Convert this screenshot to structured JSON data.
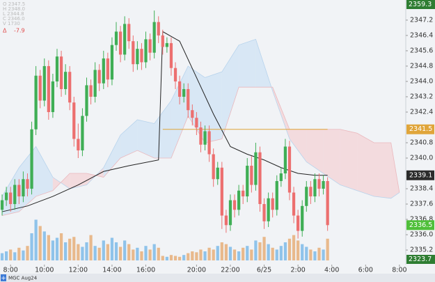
{
  "chart_data": {
    "type": "candlestick",
    "symbol_tab": "MGC Aug24",
    "ohlc_readout": [
      "O 2347.5",
      "H 2348.0",
      "L 2344.8",
      "C 2346.0",
      "V 1730"
    ],
    "change": {
      "symbol": "Δ",
      "value": -7.9
    },
    "xlim": [
      -0.5,
      95.5
    ],
    "ylim": [
      2334.44,
      2348.25
    ],
    "xticks": [
      {
        "value": 2,
        "label": "8:00"
      },
      {
        "value": 10,
        "label": "10:00"
      },
      {
        "value": 18,
        "label": "12:00"
      },
      {
        "value": 26,
        "label": "14:00"
      },
      {
        "value": 34,
        "label": "16:00"
      },
      {
        "value": 46,
        "label": "20:00"
      },
      {
        "value": 54,
        "label": "22:00"
      },
      {
        "value": 62,
        "label": "6/25"
      },
      {
        "value": 70,
        "label": "2:00"
      },
      {
        "value": 78,
        "label": "4:00"
      },
      {
        "value": 86,
        "label": "6:00"
      },
      {
        "value": 94,
        "label": "8:00"
      }
    ],
    "yticks": [
      2335.2,
      {
        "value": 2336,
        "label": "2336.0"
      },
      2336.8,
      2337.6,
      2338.4,
      {
        "value": 2340,
        "label": "2340.0"
      },
      2340.8,
      2342.4,
      2343.2,
      {
        "value": 2344,
        "label": "2344.0"
      },
      2344.8,
      2345.6,
      2346.4,
      2347.2
    ],
    "grid": false,
    "up_color": "#3fae55",
    "down_color": "#ec6f6f",
    "open": [
      2337.3,
      2337.8,
      2338.2,
      2337.6,
      2338.6,
      2338.0,
      2338.9,
      2338.4,
      2341.5,
      2344.3,
      2343.0,
      2344.8,
      2342.4,
      2344.0,
      2345.3,
      2343.6,
      2344.5,
      2342.9,
      2341.0,
      2340.4,
      2342.2,
      2343.8,
      2343.2,
      2344.6,
      2343.9,
      2345.2,
      2344.1,
      2345.9,
      2346.6,
      2345.4,
      2347.0,
      2346.1,
      2344.9,
      2345.7,
      2345.0,
      2346.2,
      2345.5,
      2347.1,
      2346.4,
      2345.8,
      2346.0,
      2344.7,
      2344.0,
      2343.2,
      2343.6,
      2342.5,
      2342.1,
      2341.6,
      2340.7,
      2341.4,
      2340.2,
      2338.9,
      2339.5,
      2337.0,
      2336.5,
      2337.8,
      2337.3,
      2338.3,
      2338.0,
      2339.6,
      2338.6,
      2340.3,
      2337.6,
      2336.7,
      2337.9,
      2337.3,
      2338.8,
      2339.2,
      2340.6,
      2338.2,
      2337.0,
      2336.2,
      2337.5,
      2338.5,
      2338.0,
      2338.9,
      2338.4,
      2338.8
    ],
    "high": [
      2338.1,
      2338.5,
      2338.5,
      2338.9,
      2338.9,
      2339.3,
      2339.2,
      2341.9,
      2344.8,
      2344.6,
      2345.2,
      2345.1,
      2344.4,
      2345.7,
      2345.6,
      2344.9,
      2344.8,
      2343.2,
      2341.8,
      2342.6,
      2344.2,
      2344.1,
      2345.0,
      2344.9,
      2345.6,
      2345.5,
      2346.3,
      2347.1,
      2346.9,
      2347.4,
      2347.3,
      2346.4,
      2346.1,
      2346.0,
      2346.6,
      2346.5,
      2347.7,
      2347.4,
      2346.7,
      2346.3,
      2346.3,
      2345.0,
      2344.3,
      2343.9,
      2343.9,
      2342.8,
      2342.4,
      2341.9,
      2341.7,
      2341.7,
      2340.5,
      2339.8,
      2339.8,
      2337.3,
      2338.1,
      2338.1,
      2338.6,
      2338.6,
      2340.0,
      2340.1,
      2340.8,
      2340.6,
      2337.9,
      2338.2,
      2338.2,
      2339.1,
      2339.5,
      2341.0,
      2340.9,
      2338.5,
      2337.3,
      2337.8,
      2338.8,
      2338.8,
      2339.2,
      2339.2,
      2339.1,
      2339.0
    ],
    "low": [
      2337.0,
      2337.5,
      2337.2,
      2337.3,
      2337.6,
      2337.7,
      2338.0,
      2338.1,
      2341.2,
      2342.6,
      2342.7,
      2342.0,
      2342.1,
      2343.7,
      2343.2,
      2343.3,
      2342.5,
      2340.6,
      2340.0,
      2340.1,
      2341.9,
      2342.8,
      2342.9,
      2343.5,
      2343.6,
      2343.7,
      2343.8,
      2345.6,
      2345.0,
      2345.1,
      2345.7,
      2344.5,
      2344.6,
      2344.6,
      2344.7,
      2345.1,
      2345.2,
      2346.0,
      2345.4,
      2345.5,
      2344.3,
      2343.6,
      2342.8,
      2342.9,
      2342.1,
      2341.7,
      2341.2,
      2340.3,
      2340.4,
      2339.8,
      2338.5,
      2338.6,
      2336.3,
      2336.1,
      2336.2,
      2336.9,
      2337.0,
      2337.6,
      2337.7,
      2338.2,
      2338.3,
      2337.2,
      2336.3,
      2336.4,
      2336.9,
      2337.0,
      2338.5,
      2338.9,
      2337.8,
      2336.6,
      2335.8,
      2335.9,
      2337.2,
      2337.6,
      2337.7,
      2338.0,
      2338.1,
      2336.2
    ],
    "close": [
      2337.8,
      2338.2,
      2337.6,
      2338.6,
      2338.0,
      2338.9,
      2338.4,
      2341.5,
      2344.3,
      2343.0,
      2344.8,
      2342.4,
      2344.0,
      2345.3,
      2343.6,
      2344.5,
      2342.9,
      2341.0,
      2340.4,
      2342.2,
      2343.8,
      2343.2,
      2344.6,
      2343.9,
      2345.2,
      2344.1,
      2345.9,
      2346.6,
      2345.4,
      2347.0,
      2346.1,
      2344.9,
      2345.7,
      2345.0,
      2346.2,
      2345.5,
      2347.1,
      2346.4,
      2345.8,
      2346.0,
      2344.7,
      2344.0,
      2343.2,
      2343.6,
      2342.5,
      2342.1,
      2341.6,
      2340.7,
      2341.4,
      2340.2,
      2338.9,
      2339.5,
      2337.0,
      2336.5,
      2337.8,
      2337.3,
      2338.3,
      2338.0,
      2339.6,
      2338.6,
      2340.3,
      2337.6,
      2336.7,
      2337.9,
      2337.3,
      2338.8,
      2339.2,
      2340.6,
      2338.2,
      2337.0,
      2336.2,
      2337.5,
      2338.5,
      2338.0,
      2338.9,
      2338.4,
      2338.8,
      2336.5
    ],
    "volume": [
      8,
      10,
      12,
      9,
      14,
      11,
      16,
      30,
      45,
      38,
      32,
      28,
      22,
      25,
      30,
      20,
      24,
      26,
      18,
      15,
      20,
      28,
      16,
      14,
      22,
      18,
      25,
      20,
      15,
      22,
      18,
      12,
      14,
      10,
      16,
      12,
      18,
      14,
      5,
      4,
      6,
      5,
      4,
      6,
      8,
      10,
      9,
      12,
      10,
      14,
      12,
      16,
      20,
      18,
      15,
      12,
      10,
      14,
      16,
      12,
      22,
      20,
      26,
      18,
      14,
      12,
      16,
      20,
      24,
      28,
      22,
      18,
      15,
      12,
      10,
      14,
      12,
      24
    ],
    "volume_up_color": "#8fc3ea",
    "volume_down_color": "#e8b98c",
    "span_a": {
      "color": "#b7d3ec",
      "x": [
        0,
        4,
        8,
        12,
        16,
        20,
        24,
        28,
        32,
        36,
        40,
        44,
        48,
        52,
        56,
        60,
        64,
        68,
        72,
        76,
        80,
        84,
        88,
        92,
        94
      ],
      "values": [
        2338.0,
        2339.5,
        2340.6,
        2339.0,
        2338.4,
        2338.6,
        2339.5,
        2341.2,
        2342.0,
        2341.8,
        2343.0,
        2344.8,
        2344.2,
        2344.5,
        2345.9,
        2346.2,
        2343.5,
        2341.0,
        2339.8,
        2339.2,
        2338.6,
        2338.3,
        2338.0,
        2337.9,
        2338.2
      ]
    },
    "span_b": {
      "color": "#eab8bd",
      "x": [
        0,
        4,
        8,
        12,
        16,
        20,
        24,
        28,
        32,
        36,
        40,
        44,
        48,
        52,
        56,
        60,
        64,
        68,
        72,
        76,
        80,
        84,
        88,
        92,
        94
      ],
      "values": [
        2337.0,
        2337.2,
        2338.0,
        2338.3,
        2339.2,
        2339.2,
        2339.0,
        2340.0,
        2340.4,
        2340.0,
        2340.0,
        2342.2,
        2340.8,
        2341.0,
        2343.7,
        2343.7,
        2343.7,
        2341.5,
        2341.5,
        2341.5,
        2341.5,
        2341.3,
        2340.8,
        2340.8,
        2338.2
      ]
    },
    "bull_cloud_color": "#d3e4f4",
    "bear_cloud_color": "#f3d6d9",
    "ma": {
      "color": "#222222",
      "x": [
        0,
        6,
        12,
        18,
        24,
        30,
        37,
        38,
        42,
        46,
        50,
        54,
        58,
        62,
        66,
        70,
        74,
        77
      ],
      "values": [
        2337.2,
        2337.5,
        2338.0,
        2338.6,
        2339.3,
        2339.6,
        2339.9,
        2346.6,
        2346.1,
        2344.2,
        2342.3,
        2340.6,
        2340.2,
        2339.9,
        2339.5,
        2339.2,
        2339.1,
        2339.1
      ]
    },
    "level_line": {
      "value": 2341.5,
      "from": 38,
      "to": 77,
      "color": "#e0a53a"
    },
    "price_tags": [
      {
        "value": 2341.5,
        "color": "#e0a53a"
      },
      {
        "value": 2339.1,
        "color": "#2b2b2b"
      },
      {
        "value": 2336.5,
        "color": "#4fbf3a"
      }
    ],
    "edge_tags": {
      "top": 2359.3,
      "bottom": 2323.7,
      "color": "#2e7d32"
    }
  }
}
